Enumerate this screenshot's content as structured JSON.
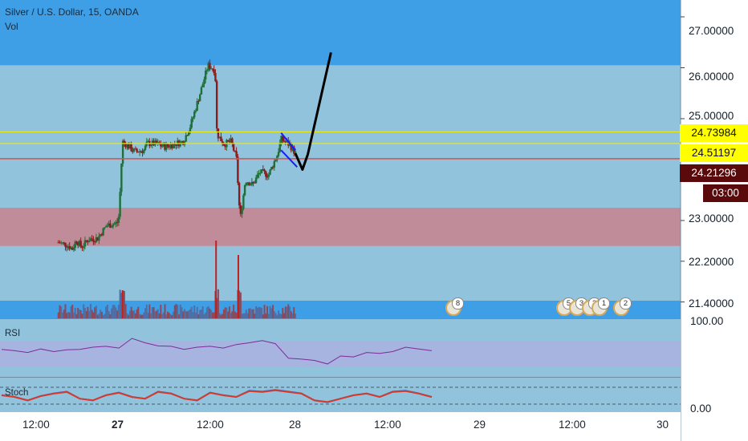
{
  "legend": {
    "symbol": "Silver / U.S. Dollar, 15, OANDA",
    "volume": "Vol"
  },
  "price_labels": [
    {
      "name": "upper-level",
      "value": "24.73984",
      "bg": "#ffff00",
      "fg": "#111111"
    },
    {
      "name": "mid-level",
      "value": "24.51197",
      "bg": "#ffff00",
      "fg": "#111111"
    },
    {
      "name": "current-price",
      "value": "24.21296",
      "bg": "#5a0a0a",
      "fg": "#ffffff"
    },
    {
      "name": "bar-countdown",
      "value": "03:00",
      "bg": "#5a0a0a",
      "fg": "#ffffff"
    }
  ],
  "rsi": {
    "label": "RSI",
    "axis_label": "100.00"
  },
  "stoch": {
    "label": "Stoch",
    "axis_label": "0.00"
  },
  "events": [
    {
      "name": "event-1",
      "count": "8"
    },
    {
      "name": "event-2",
      "count": "5"
    },
    {
      "name": "event-3",
      "count": "3"
    },
    {
      "name": "event-4",
      "count": "2"
    },
    {
      "name": "event-5",
      "count": "1"
    },
    {
      "name": "event-6",
      "count": "2"
    }
  ],
  "colors": {
    "background": "#92c3dc",
    "supply_zone": "#3f9fe6",
    "demand_zone": "#c08c9a",
    "bull": "#1f6f3a",
    "bear": "#8b1a1a",
    "projection": "#000000",
    "flag": "#1a1aff",
    "level_line": "#e8e818",
    "red_line": "#c85a5a"
  },
  "chart_data": {
    "type": "candlestick",
    "title": "Silver / U.S. Dollar, 15, OANDA",
    "y_axis_ticks": [
      27.0,
      26.0,
      25.0,
      23.0,
      22.2,
      21.4
    ],
    "y_axis_labels": [
      "27.00000",
      "26.00000",
      "25.00000",
      "23.00000",
      "22.20000",
      "21.40000"
    ],
    "x_axis_labels": [
      "12:00",
      "27",
      "12:00",
      "28",
      "12:00",
      "29",
      "12:00",
      "30"
    ],
    "horizontal_levels": [
      24.73984,
      24.51197,
      24.21296
    ],
    "zones": [
      {
        "name": "supply",
        "from": 26.05,
        "to": 27.5
      },
      {
        "name": "demand",
        "from": 22.5,
        "to": 23.25
      }
    ],
    "price_path": [
      [
        0,
        22.57
      ],
      [
        0.05,
        22.52
      ],
      [
        0.08,
        22.44
      ],
      [
        0.1,
        22.62
      ],
      [
        0.13,
        22.48
      ],
      [
        0.17,
        22.63
      ],
      [
        0.22,
        22.65
      ],
      [
        0.27,
        22.9
      ],
      [
        0.33,
        22.95
      ],
      [
        0.34,
        23.1
      ],
      [
        0.36,
        24.55
      ],
      [
        0.43,
        24.35
      ],
      [
        0.48,
        24.38
      ],
      [
        0.5,
        24.52
      ],
      [
        0.55,
        24.5
      ],
      [
        0.6,
        24.45
      ],
      [
        0.65,
        24.5
      ],
      [
        0.7,
        24.55
      ],
      [
        0.74,
        24.85
      ],
      [
        0.8,
        25.55
      ],
      [
        0.84,
        26.05
      ],
      [
        0.88,
        25.95
      ],
      [
        0.89,
        24.7
      ],
      [
        0.93,
        24.5
      ],
      [
        0.97,
        24.55
      ],
      [
        1.0,
        24.2
      ],
      [
        1.02,
        23.0
      ],
      [
        1.05,
        23.8
      ],
      [
        1.09,
        23.7
      ],
      [
        1.13,
        23.95
      ],
      [
        1.18,
        23.9
      ],
      [
        1.23,
        24.3
      ],
      [
        1.25,
        24.6
      ],
      [
        1.3,
        24.48
      ],
      [
        1.33,
        24.32
      ]
    ],
    "rsi_values": [
      55,
      52,
      48,
      56,
      50,
      54,
      55,
      60,
      62,
      58,
      80,
      70,
      63,
      62,
      55,
      60,
      62,
      58,
      66,
      70,
      75,
      68,
      35,
      33,
      30,
      22,
      40,
      38,
      48,
      46,
      50,
      60,
      56,
      52
    ],
    "stoch_values": [
      60,
      50,
      30,
      55,
      70,
      80,
      40,
      30,
      60,
      75,
      50,
      40,
      80,
      70,
      40,
      30,
      75,
      60,
      50,
      85,
      80,
      90,
      80,
      70,
      30,
      20,
      40,
      60,
      70,
      50,
      80,
      85,
      70,
      50
    ],
    "projection": [
      [
        1.33,
        24.32
      ],
      [
        1.37,
        24.0
      ],
      [
        1.4,
        24.3
      ],
      [
        1.53,
        26.3
      ]
    ]
  }
}
